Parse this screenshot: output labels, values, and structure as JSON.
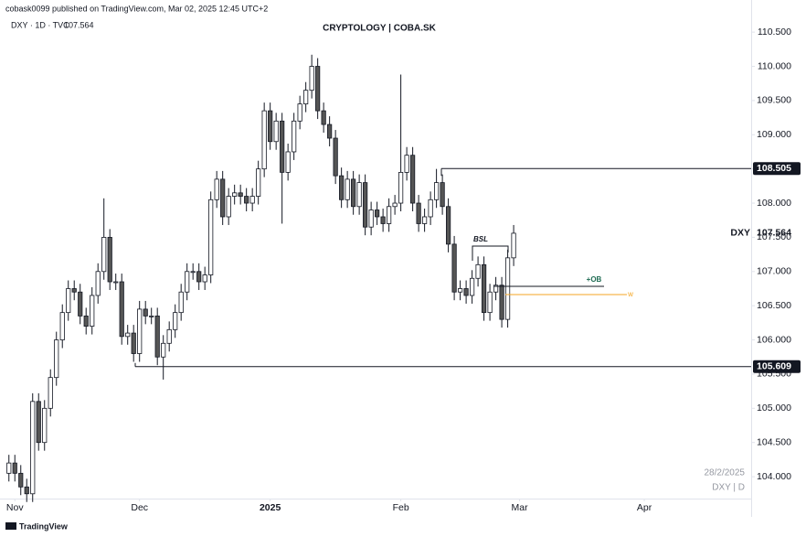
{
  "header": {
    "publisher": "cobask0099 published on TradingView.com, Mar 02, 2025 12:45 UTC+2",
    "symbol_info": "DXY · 1D · TVC"
  },
  "footer": {
    "brand": "TradingView"
  },
  "chart_data": {
    "type": "candlestick",
    "title": "CRYPTOLOGY | COBA.SK",
    "symbol": "DXY",
    "last_price": 107.564,
    "up_color": "#ffffff",
    "down_color": "#555555",
    "open": [
      104.05,
      104.2,
      104.05,
      103.85,
      103.75,
      105.1,
      104.5,
      105.0,
      105.45,
      106.0,
      106.4,
      106.75,
      106.7,
      106.35,
      106.2,
      106.65,
      107.0,
      107.5,
      106.85,
      106.85,
      106.05,
      106.1,
      105.8,
      106.45,
      106.35,
      106.35,
      105.75,
      105.95,
      106.15,
      106.4,
      106.7,
      107.0,
      107.0,
      106.85,
      106.95,
      108.05,
      108.35,
      107.8,
      108.1,
      108.15,
      108.1,
      108.0,
      108.1,
      108.5,
      109.35,
      108.9,
      109.2,
      108.45,
      108.75,
      109.2,
      109.45,
      109.65,
      110.0,
      109.35,
      109.15,
      108.95,
      108.4,
      108.05,
      108.35,
      107.95,
      108.3,
      107.65,
      107.9,
      107.8,
      107.7,
      107.95,
      108.0,
      108.45,
      108.7,
      108.0,
      107.7,
      107.8,
      108.05,
      108.3,
      107.95,
      107.4,
      106.7,
      106.75,
      106.65,
      106.9,
      107.1,
      106.4,
      106.7,
      106.8,
      106.3,
      107.2
    ],
    "high": [
      104.32,
      104.32,
      104.17,
      103.97,
      105.22,
      105.22,
      105.12,
      105.57,
      106.12,
      106.52,
      106.87,
      106.87,
      106.82,
      106.47,
      106.77,
      107.12,
      108.07,
      107.62,
      106.97,
      106.97,
      106.22,
      106.22,
      106.57,
      106.57,
      106.47,
      106.47,
      106.07,
      106.27,
      106.52,
      106.82,
      107.12,
      107.12,
      107.12,
      107.07,
      108.17,
      108.47,
      108.47,
      108.22,
      108.27,
      108.27,
      108.22,
      108.22,
      108.62,
      109.47,
      109.47,
      109.32,
      109.32,
      108.87,
      109.32,
      109.57,
      109.77,
      110.17,
      110.12,
      109.47,
      109.27,
      109.07,
      108.52,
      108.47,
      108.47,
      108.42,
      108.42,
      108.02,
      108.02,
      107.92,
      108.07,
      108.12,
      109.88,
      108.82,
      108.82,
      108.12,
      107.92,
      108.17,
      108.5,
      108.42,
      108.07,
      107.52,
      106.87,
      106.87,
      107.02,
      107.22,
      107.22,
      106.82,
      106.92,
      106.92,
      107.32,
      107.68
    ],
    "low": [
      103.93,
      103.93,
      103.73,
      103.63,
      103.63,
      104.38,
      104.38,
      104.88,
      105.33,
      105.88,
      106.28,
      106.58,
      106.23,
      106.08,
      106.08,
      106.53,
      106.88,
      106.73,
      106.73,
      105.93,
      105.93,
      105.68,
      105.68,
      106.23,
      106.23,
      105.63,
      105.42,
      105.83,
      106.03,
      106.28,
      106.58,
      106.88,
      106.73,
      106.73,
      106.83,
      107.93,
      107.68,
      107.68,
      107.98,
      107.98,
      107.88,
      107.88,
      107.98,
      108.38,
      108.78,
      108.78,
      107.7,
      108.33,
      108.63,
      109.08,
      109.33,
      109.53,
      109.23,
      109.03,
      108.83,
      108.28,
      107.93,
      107.93,
      107.83,
      107.83,
      107.53,
      107.53,
      107.68,
      107.58,
      107.58,
      107.83,
      107.88,
      108.33,
      107.88,
      107.58,
      107.58,
      107.68,
      107.93,
      107.83,
      107.28,
      106.58,
      106.58,
      106.53,
      106.53,
      106.78,
      106.28,
      106.28,
      106.58,
      106.18,
      106.18,
      107.08
    ],
    "close": [
      104.2,
      104.05,
      103.85,
      103.75,
      105.1,
      104.5,
      105.0,
      105.45,
      106.0,
      106.4,
      106.75,
      106.7,
      106.35,
      106.2,
      106.65,
      107.0,
      107.5,
      106.85,
      106.85,
      106.05,
      106.1,
      105.8,
      106.45,
      106.35,
      106.35,
      105.75,
      105.95,
      106.15,
      106.4,
      106.7,
      107.0,
      107.0,
      106.85,
      106.95,
      108.05,
      108.35,
      107.8,
      108.1,
      108.15,
      108.1,
      108.0,
      108.1,
      108.5,
      109.35,
      108.9,
      109.2,
      108.45,
      108.75,
      109.2,
      109.45,
      109.65,
      110.0,
      109.35,
      109.15,
      108.95,
      108.4,
      108.05,
      108.35,
      107.95,
      108.3,
      107.65,
      107.9,
      107.8,
      107.7,
      107.95,
      108.0,
      108.45,
      108.7,
      108.0,
      107.7,
      107.8,
      108.05,
      108.3,
      107.95,
      107.4,
      106.7,
      106.75,
      106.65,
      106.9,
      107.1,
      106.4,
      106.7,
      106.8,
      106.3,
      107.2,
      107.56
    ],
    "xlim": [
      -1.5,
      125
    ],
    "xticks": [
      {
        "value": 1,
        "label": "Nov"
      },
      {
        "value": 22,
        "label": "Dec"
      },
      {
        "value": 44,
        "label": "2025"
      },
      {
        "value": 66,
        "label": "Feb"
      },
      {
        "value": 86,
        "label": "Mar"
      },
      {
        "value": 107,
        "label": "Apr"
      }
    ],
    "ylim": [
      103.68,
      110.97
    ],
    "yticks": [
      {
        "value": 104,
        "label": "104.000"
      },
      {
        "value": 104.5,
        "label": "104.500"
      },
      {
        "value": 105,
        "label": "105.000"
      },
      {
        "value": 105.5,
        "label": "105.500"
      },
      {
        "value": 106,
        "label": "106.000"
      },
      {
        "value": 106.5,
        "label": "106.500"
      },
      {
        "value": 107,
        "label": "107.000"
      },
      {
        "value": 107.5,
        "label": "107.500"
      },
      {
        "value": 108,
        "label": "108.000"
      },
      {
        "value": 108.5,
        "label": "108.500"
      },
      {
        "value": 109,
        "label": "109.000"
      },
      {
        "value": 109.5,
        "label": "109.500"
      },
      {
        "value": 110,
        "label": "110.000"
      },
      {
        "value": 110.5,
        "label": "110.500"
      }
    ],
    "levels": [
      108.505,
      105.609
    ],
    "annotations": [
      "BSL",
      "+OB",
      "w"
    ],
    "watermark": [
      "28/2/2025",
      "DXY | D"
    ]
  }
}
